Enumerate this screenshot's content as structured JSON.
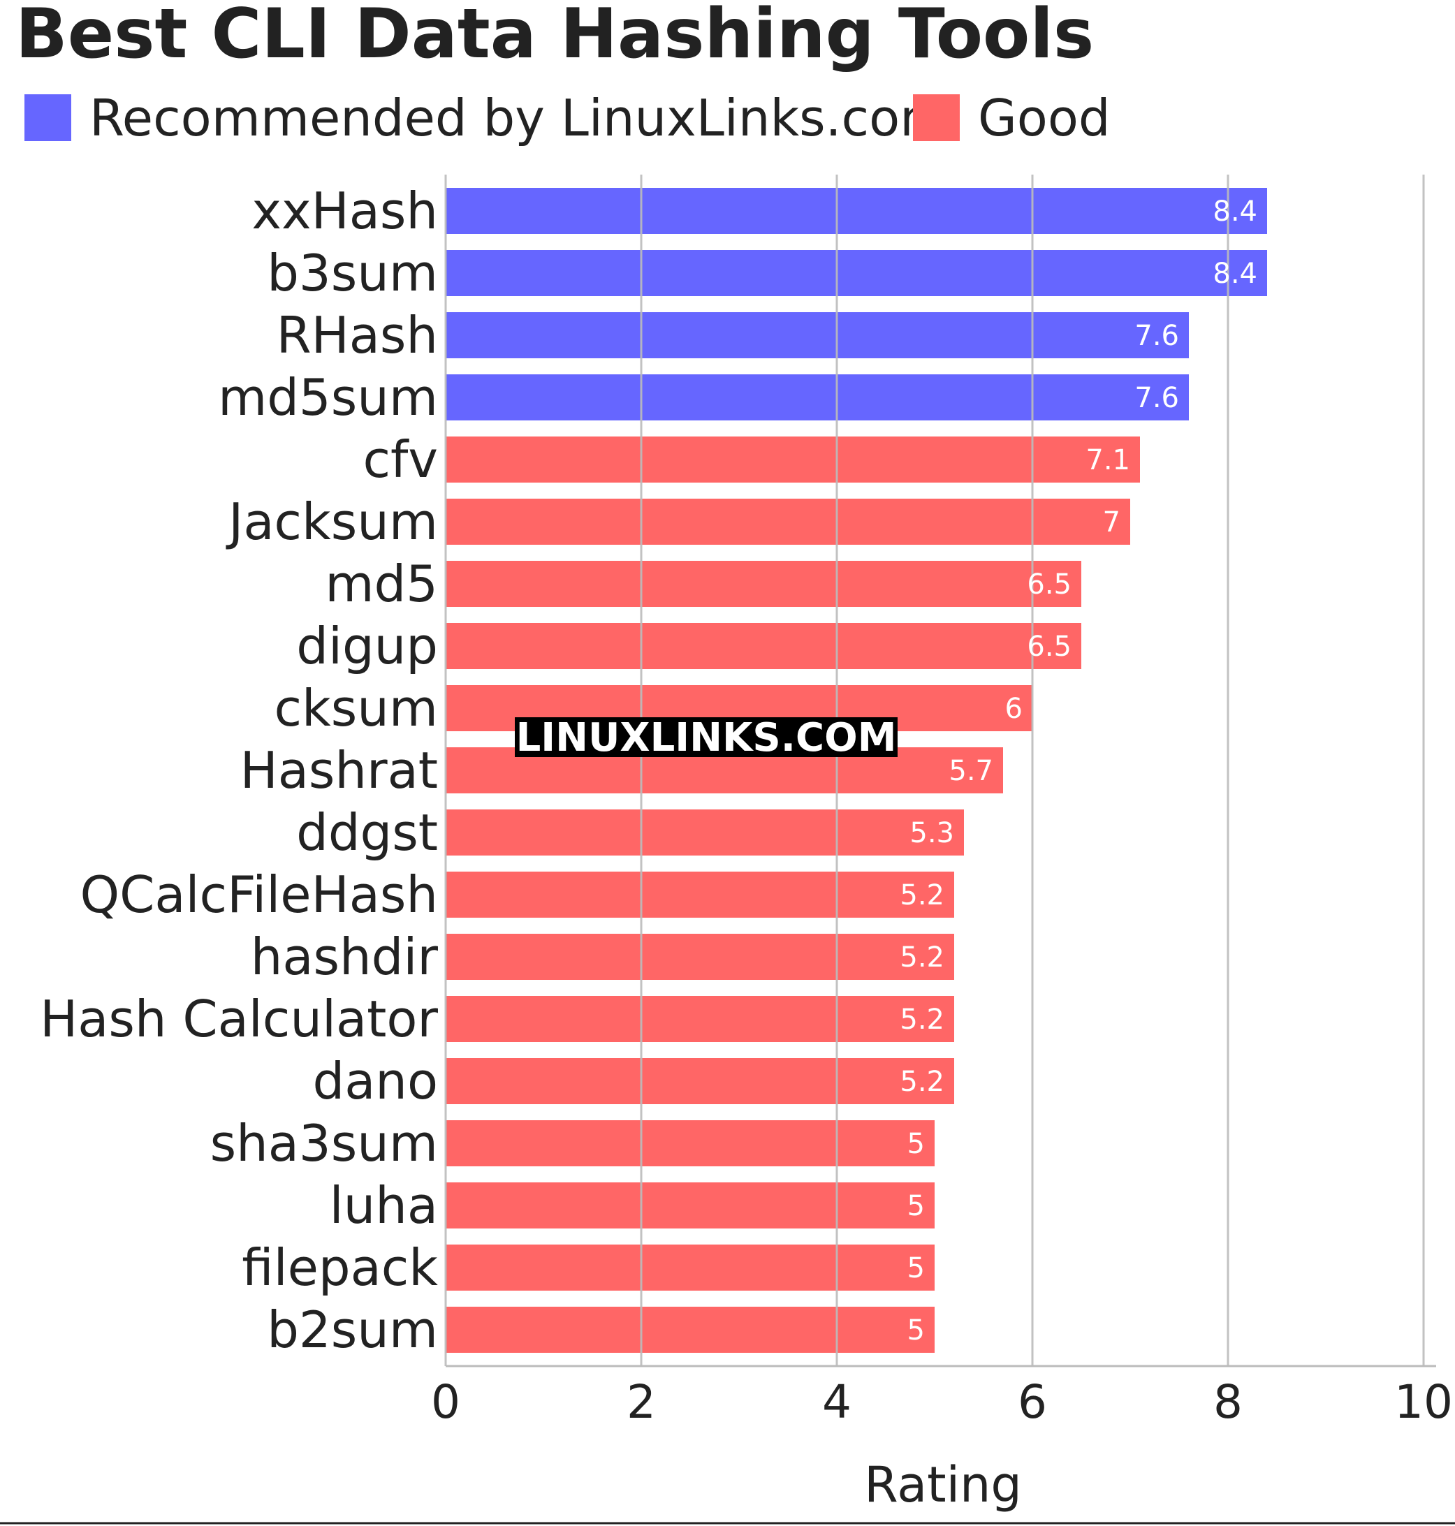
{
  "chart_data": {
    "type": "bar",
    "orientation": "horizontal",
    "title": "Best CLI Data Hashing Tools",
    "xlabel": "Rating",
    "ylabel": "",
    "xlim": [
      0,
      10
    ],
    "xticks": [
      0,
      2,
      4,
      6,
      8,
      10
    ],
    "grid": true,
    "legend_position": "top-left",
    "legend": [
      {
        "label": "Recommended by LinuxLinks.com",
        "color": "#6666ff"
      },
      {
        "label": "Good",
        "color": "#ff6666"
      }
    ],
    "categories": [
      "xxHash",
      "b3sum",
      "RHash",
      "md5sum",
      "cfv",
      "Jacksum",
      "md5",
      "digup",
      "cksum",
      "Hashrat",
      "ddgst",
      "QCalcFileHash",
      "hashdir",
      "Hash Calculator",
      "dano",
      "sha3sum",
      "luha",
      "filepack",
      "b2sum"
    ],
    "values": [
      8.4,
      8.4,
      7.6,
      7.6,
      7.1,
      7,
      6.5,
      6.5,
      6,
      5.7,
      5.3,
      5.2,
      5.2,
      5.2,
      5.2,
      5,
      5,
      5,
      5
    ],
    "groups": [
      "Recommended by LinuxLinks.com",
      "Recommended by LinuxLinks.com",
      "Recommended by LinuxLinks.com",
      "Recommended by LinuxLinks.com",
      "Good",
      "Good",
      "Good",
      "Good",
      "Good",
      "Good",
      "Good",
      "Good",
      "Good",
      "Good",
      "Good",
      "Good",
      "Good",
      "Good",
      "Good"
    ]
  },
  "watermark": "LINUXLINKS.COM",
  "colors": {
    "recommended": "#6666ff",
    "good": "#ff6666",
    "grid": "#bbbbbb",
    "text": "#222222"
  }
}
